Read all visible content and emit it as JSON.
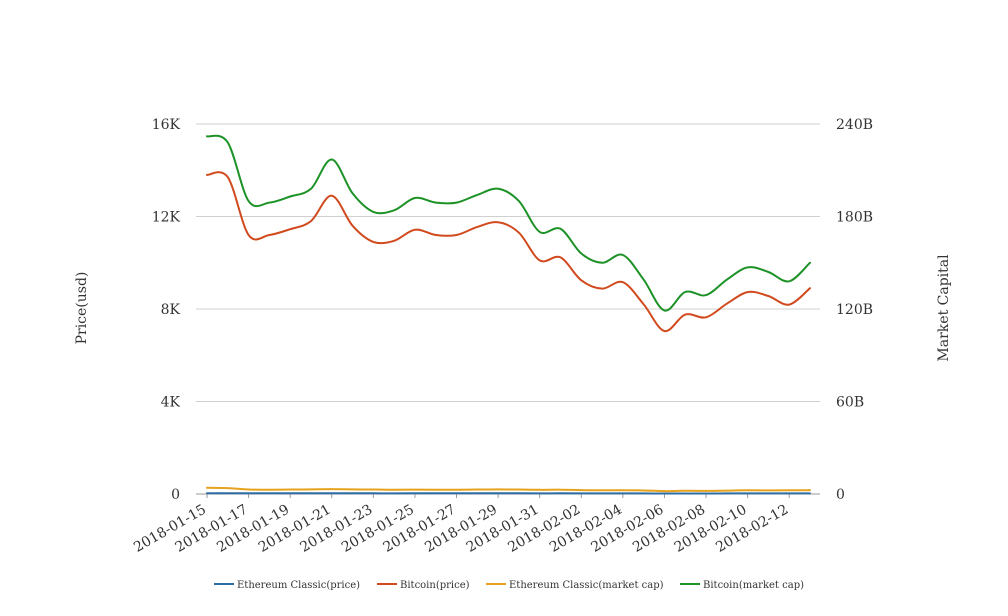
{
  "chart_data": {
    "type": "line",
    "x": [
      "2018-01-15",
      "2018-01-16",
      "2018-01-17",
      "2018-01-18",
      "2018-01-19",
      "2018-01-20",
      "2018-01-21",
      "2018-01-22",
      "2018-01-23",
      "2018-01-24",
      "2018-01-25",
      "2018-01-26",
      "2018-01-27",
      "2018-01-28",
      "2018-01-29",
      "2018-01-30",
      "2018-01-31",
      "2018-02-01",
      "2018-02-02",
      "2018-02-03",
      "2018-02-04",
      "2018-02-05",
      "2018-02-06",
      "2018-02-07",
      "2018-02-08",
      "2018-02-09",
      "2018-02-10",
      "2018-02-11",
      "2018-02-12",
      "2018-02-13"
    ],
    "x_tick_labels": [
      "2018-01-15",
      "2018-01-17",
      "2018-01-19",
      "2018-01-21",
      "2018-01-23",
      "2018-01-25",
      "2018-01-27",
      "2018-01-29",
      "2018-01-31",
      "2018-02-02",
      "2018-02-04",
      "2018-02-06",
      "2018-02-08",
      "2018-02-10",
      "2018-02-12"
    ],
    "ylabel": "Price(usd)",
    "y2label": "Market Capital",
    "ylim": [
      0,
      16000
    ],
    "y2lim": [
      0,
      240000000000
    ],
    "y_ticks": [
      0,
      4000,
      8000,
      12000,
      16000
    ],
    "y_tick_labels": [
      "0",
      "4K",
      "8K",
      "12K",
      "16K"
    ],
    "y2_ticks": [
      0,
      60000000000,
      120000000000,
      180000000000,
      240000000000
    ],
    "y2_tick_labels": [
      "0",
      "60B",
      "120B",
      "180B",
      "240B"
    ],
    "grid": true,
    "legend_position": "bottom",
    "series": [
      {
        "name": "Ethereum Classic(price)",
        "axis": "left",
        "color": "#2e6da4",
        "values": [
          36,
          34,
          30,
          29,
          29,
          30,
          31,
          30,
          29,
          28,
          29,
          29,
          29,
          29,
          30,
          30,
          28,
          29,
          27,
          25,
          26,
          24,
          20,
          21,
          22,
          24,
          25,
          25,
          26,
          27
        ]
      },
      {
        "name": "Bitcoin(price)",
        "axis": "left",
        "color": "#d14a1e",
        "values": [
          13800,
          13700,
          11200,
          11200,
          11450,
          11800,
          12900,
          11600,
          10900,
          10950,
          11430,
          11200,
          11200,
          11550,
          11750,
          11300,
          10100,
          10230,
          9240,
          8880,
          9160,
          8200,
          7050,
          7760,
          7640,
          8230,
          8730,
          8560,
          8190,
          8900
        ]
      },
      {
        "name": "Ethereum Classic(market cap)",
        "axis": "right",
        "color": "#e6a21c",
        "values": [
          4000000000,
          3800000000,
          2900000000,
          2800000000,
          2900000000,
          3000000000,
          3200000000,
          3000000000,
          2900000000,
          2800000000,
          2850000000,
          2800000000,
          2800000000,
          2900000000,
          3000000000,
          2900000000,
          2700000000,
          2800000000,
          2500000000,
          2400000000,
          2450000000,
          2300000000,
          1900000000,
          2100000000,
          2000000000,
          2200000000,
          2400000000,
          2350000000,
          2400000000,
          2500000000
        ]
      },
      {
        "name": "Bitcoin(market cap)",
        "axis": "right",
        "color": "#1d9227",
        "values": [
          232000000000,
          228000000000,
          190000000000,
          189000000000,
          193000000000,
          198000000000,
          217000000000,
          195000000000,
          183000000000,
          184000000000,
          192000000000,
          189000000000,
          189000000000,
          194000000000,
          198000000000,
          190000000000,
          170000000000,
          172000000000,
          156000000000,
          150000000000,
          155000000000,
          139000000000,
          119000000000,
          131000000000,
          129000000000,
          139000000000,
          147000000000,
          144000000000,
          138000000000,
          150000000000
        ]
      }
    ]
  }
}
